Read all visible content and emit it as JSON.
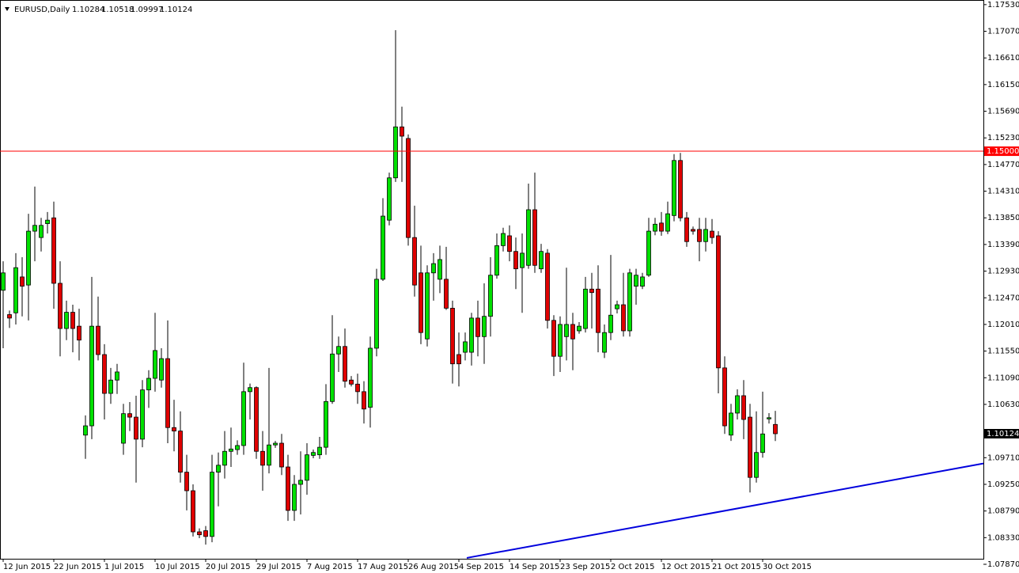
{
  "chart_data": {
    "type": "candlestick",
    "title": "EURUSD,Daily",
    "categories": [
      "12 Jun 2015",
      null,
      null,
      null,
      null,
      null,
      null,
      null,
      "22 Jun 2015",
      null,
      null,
      null,
      null,
      null,
      null,
      null,
      "1 Jul 2015",
      null,
      null,
      null,
      null,
      null,
      null,
      null,
      "10 Jul 2015",
      null,
      null,
      null,
      null,
      null,
      null,
      null,
      "20 Jul 2015",
      null,
      null,
      null,
      null,
      null,
      null,
      null,
      "29 Jul 2015",
      null,
      null,
      null,
      null,
      null,
      null,
      null,
      "7 Aug 2015",
      null,
      null,
      null,
      null,
      null,
      null,
      null,
      "17 Aug 2015",
      null,
      null,
      null,
      null,
      null,
      null,
      null,
      "26 Aug 2015",
      null,
      null,
      null,
      null,
      null,
      null,
      null,
      "4 Sep 2015",
      null,
      null,
      null,
      null,
      null,
      null,
      null,
      "14 Sep 2015",
      null,
      null,
      null,
      null,
      null,
      null,
      null,
      "23 Sep 2015",
      null,
      null,
      null,
      null,
      null,
      null,
      null,
      "2 Oct 2015",
      null,
      null,
      null,
      null,
      null,
      null,
      null,
      "12 Oct 2015",
      null,
      null,
      null,
      null,
      null,
      null,
      null,
      "21 Oct 2015",
      null,
      null,
      null,
      null,
      null,
      null,
      null,
      "30 Oct 2015",
      null,
      null
    ],
    "open": [
      1.126,
      1.1218,
      1.1221,
      1.1283,
      1.1269,
      1.1362,
      1.1351,
      1.1375,
      1.1385,
      1.1272,
      1.1194,
      1.1222,
      1.1198,
      1.101,
      1.1026,
      1.1198,
      1.1149,
      1.1082,
      1.1105,
      1.0996,
      1.1047,
      1.1041,
      1.1003,
      1.1088,
      1.1108,
      1.1105,
      1.1142,
      1.1023,
      1.1017,
      1.0946,
      1.0914,
      1.0843,
      1.0845,
      1.0835,
      1.0946,
      1.0958,
      1.0982,
      1.0985,
      1.0992,
      1.1085,
      1.1092,
      1.0982,
      1.0958,
      1.0993,
      1.0996,
      1.0955,
      1.088,
      1.0925,
      1.0932,
      1.0975,
      1.0976,
      1.0989,
      1.1068,
      1.115,
      1.1163,
      1.1105,
      1.1098,
      1.1085,
      1.1058,
      1.116,
      1.1279,
      1.1381,
      1.1454,
      1.1542,
      1.1522,
      1.1351,
      1.129,
      1.1176,
      1.129,
      1.1279,
      1.1279,
      1.1229,
      1.1149,
      1.1153,
      1.1153,
      1.1212,
      1.118,
      1.1215,
      1.1286,
      1.1337,
      1.1354,
      1.1327,
      1.1299,
      1.1303,
      1.1399,
      1.1297,
      1.1324,
      1.1208,
      1.1146,
      1.118,
      1.1201,
      1.119,
      1.1194,
      1.1262,
      1.1262,
      1.1153,
      1.1187,
      1.1228,
      1.1235,
      1.119,
      1.1267,
      1.1267,
      1.1286,
      1.1362,
      1.1376,
      1.1362,
      1.1389,
      1.1484,
      1.1385,
      1.1365,
      1.1365,
      1.1344,
      1.1362,
      1.1354,
      1.1126,
      1.101,
      1.1048,
      1.1078,
      1.1041,
      1.0937,
      1.098,
      1.1038,
      1.10284
    ],
    "high": [
      1.131,
      1.1225,
      1.1324,
      1.1317,
      1.1392,
      1.1439,
      1.1385,
      1.1395,
      1.1413,
      1.131,
      1.1242,
      1.1235,
      1.1228,
      1.1044,
      1.1283,
      1.1249,
      1.1167,
      1.1126,
      1.1133,
      1.1064,
      1.1067,
      1.1078,
      1.1105,
      1.1122,
      1.1221,
      1.116,
      1.1208,
      1.1071,
      1.1051,
      1.0976,
      1.0925,
      1.0849,
      1.0853,
      1.0976,
      1.098,
      1.1017,
      1.1023,
      1.1001,
      1.1135,
      1.1099,
      1.1094,
      1.1017,
      1.1126,
      1.1,
      1.1012,
      1.0976,
      1.0941,
      1.0982,
      1.0996,
      1.0985,
      1.1007,
      1.1098,
      1.1217,
      1.118,
      1.1194,
      1.1112,
      1.1116,
      1.1103,
      1.118,
      1.1297,
      1.1419,
      1.1463,
      1.1709,
      1.1577,
      1.1529,
      1.1406,
      1.1337,
      1.1303,
      1.1324,
      1.1337,
      1.1335,
      1.1242,
      1.1187,
      1.1187,
      1.1221,
      1.1242,
      1.1272,
      1.1317,
      1.1358,
      1.1368,
      1.1372,
      1.1351,
      1.1358,
      1.1444,
      1.1463,
      1.134,
      1.1331,
      1.1217,
      1.1215,
      1.1299,
      1.1221,
      1.1205,
      1.1283,
      1.129,
      1.1303,
      1.1201,
      1.1321,
      1.1242,
      1.129,
      1.1297,
      1.1297,
      1.129,
      1.1385,
      1.1385,
      1.1395,
      1.1413,
      1.1495,
      1.1497,
      1.1395,
      1.137,
      1.1385,
      1.1385,
      1.1383,
      1.1362,
      1.1146,
      1.1064,
      1.1089,
      1.1105,
      1.1064,
      1.1051,
      1.1085,
      1.1048,
      1.10518
    ],
    "low": [
      1.116,
      1.1195,
      1.1201,
      1.1215,
      1.1208,
      1.131,
      1.1327,
      1.1358,
      1.1228,
      1.1146,
      1.1174,
      1.1153,
      1.1139,
      1.0969,
      1.1003,
      1.1139,
      1.1037,
      1.1064,
      1.1081,
      1.0976,
      1.1017,
      1.0928,
      1.0989,
      1.1057,
      1.1085,
      1.1092,
      1.0996,
      1.0982,
      1.0928,
      1.088,
      1.0835,
      1.0832,
      1.0821,
      1.0825,
      1.0887,
      1.0935,
      1.0955,
      1.0976,
      1.0976,
      1.1037,
      1.0969,
      1.0914,
      1.0944,
      1.0988,
      1.0941,
      1.0862,
      1.0862,
      1.0873,
      1.0907,
      1.097,
      1.0969,
      1.0976,
      1.1064,
      1.1119,
      1.1092,
      1.1094,
      1.1064,
      1.103,
      1.1023,
      1.1146,
      1.1276,
      1.1372,
      1.1447,
      1.1447,
      1.1337,
      1.1249,
      1.1167,
      1.1163,
      1.1242,
      1.1255,
      1.1226,
      1.1099,
      1.1094,
      1.1139,
      1.113,
      1.1146,
      1.1133,
      1.118,
      1.128,
      1.1327,
      1.131,
      1.1262,
      1.1221,
      1.1297,
      1.129,
      1.129,
      1.1194,
      1.1112,
      1.1119,
      1.1139,
      1.1122,
      1.1185,
      1.1187,
      1.1194,
      1.1153,
      1.1143,
      1.1174,
      1.122,
      1.118,
      1.118,
      1.1235,
      1.1262,
      1.1283,
      1.1355,
      1.1354,
      1.1357,
      1.1379,
      1.1379,
      1.1335,
      1.1356,
      1.131,
      1.1327,
      1.134,
      1.1082,
      1.1012,
      1.1,
      1.1037,
      1.1003,
      1.0911,
      1.0928,
      1.0971,
      1.103,
      1.09997
    ],
    "close": [
      1.129,
      1.1212,
      1.1299,
      1.1267,
      1.1362,
      1.1372,
      1.1372,
      1.1381,
      1.1272,
      1.1194,
      1.1222,
      1.1194,
      1.1174,
      1.1026,
      1.1198,
      1.1149,
      1.1082,
      1.1105,
      1.1119,
      1.1047,
      1.1041,
      1.1003,
      1.1088,
      1.1108,
      1.1156,
      1.1142,
      1.1023,
      1.1017,
      1.0946,
      1.0914,
      1.0843,
      1.0838,
      1.0835,
      1.0946,
      1.0958,
      1.0982,
      1.0986,
      1.0992,
      1.1085,
      1.1092,
      1.0982,
      1.0958,
      1.0993,
      1.0996,
      1.0955,
      1.088,
      1.0925,
      1.0932,
      1.0976,
      1.098,
      1.0989,
      1.1068,
      1.115,
      1.1163,
      1.1103,
      1.1098,
      1.1085,
      1.1055,
      1.116,
      1.1279,
      1.1388,
      1.1454,
      1.1542,
      1.1526,
      1.1351,
      1.1269,
      1.1187,
      1.129,
      1.1306,
      1.1313,
      1.1229,
      1.1133,
      1.1133,
      1.1171,
      1.1212,
      1.118,
      1.1215,
      1.1286,
      1.1337,
      1.1358,
      1.1327,
      1.1297,
      1.1324,
      1.1399,
      1.1303,
      1.1327,
      1.1208,
      1.1146,
      1.1201,
      1.1201,
      1.1176,
      1.1198,
      1.1262,
      1.1256,
      1.1187,
      1.1187,
      1.1217,
      1.1235,
      1.119,
      1.129,
      1.1286,
      1.1283,
      1.1362,
      1.1374,
      1.1362,
      1.1392,
      1.1484,
      1.1385,
      1.1344,
      1.1362,
      1.1344,
      1.1365,
      1.1351,
      1.1126,
      1.1026,
      1.1048,
      1.1078,
      1.1037,
      1.0937,
      1.098,
      1.1012,
      1.104,
      1.10124
    ],
    "up_color": "#00e000",
    "down_color": "#e00000",
    "xlim": [
      -0.5,
      154.875
    ],
    "ylim": [
      1.0787,
      1.1761
    ],
    "yticks": [
      {
        "value": 1.1753,
        "label": "1.17530"
      },
      {
        "value": 1.1707,
        "label": "1.17070"
      },
      {
        "value": 1.1661,
        "label": "1.16610"
      },
      {
        "value": 1.1615,
        "label": "1.16150"
      },
      {
        "value": 1.1569,
        "label": "1.15690"
      },
      {
        "value": 1.1523,
        "label": "1.15230"
      },
      {
        "value": 1.1477,
        "label": "1.14770"
      },
      {
        "value": 1.1431,
        "label": "1.14310"
      },
      {
        "value": 1.1385,
        "label": "1.13850"
      },
      {
        "value": 1.1339,
        "label": "1.13390"
      },
      {
        "value": 1.1293,
        "label": "1.12930"
      },
      {
        "value": 1.1247,
        "label": "1.12470"
      },
      {
        "value": 1.1201,
        "label": "1.12010"
      },
      {
        "value": 1.1155,
        "label": "1.11550"
      },
      {
        "value": 1.1109,
        "label": "1.11090"
      },
      {
        "value": 1.1063,
        "label": "1.10630"
      },
      {
        "value": 1.0971,
        "label": "1.09710"
      },
      {
        "value": 1.0925,
        "label": "1.09250"
      },
      {
        "value": 1.0879,
        "label": "1.08790"
      },
      {
        "value": 1.0833,
        "label": "1.08330"
      },
      {
        "value": 1.0787,
        "label": "1.07870"
      }
    ],
    "hline": {
      "value": 1.15,
      "label": "1.15000",
      "color": "#ff0000"
    },
    "trendline": {
      "x": [
        73.25,
        154.875
      ],
      "y": [
        1.0798,
        1.0961
      ],
      "color": "#0000dd"
    }
  }
}
